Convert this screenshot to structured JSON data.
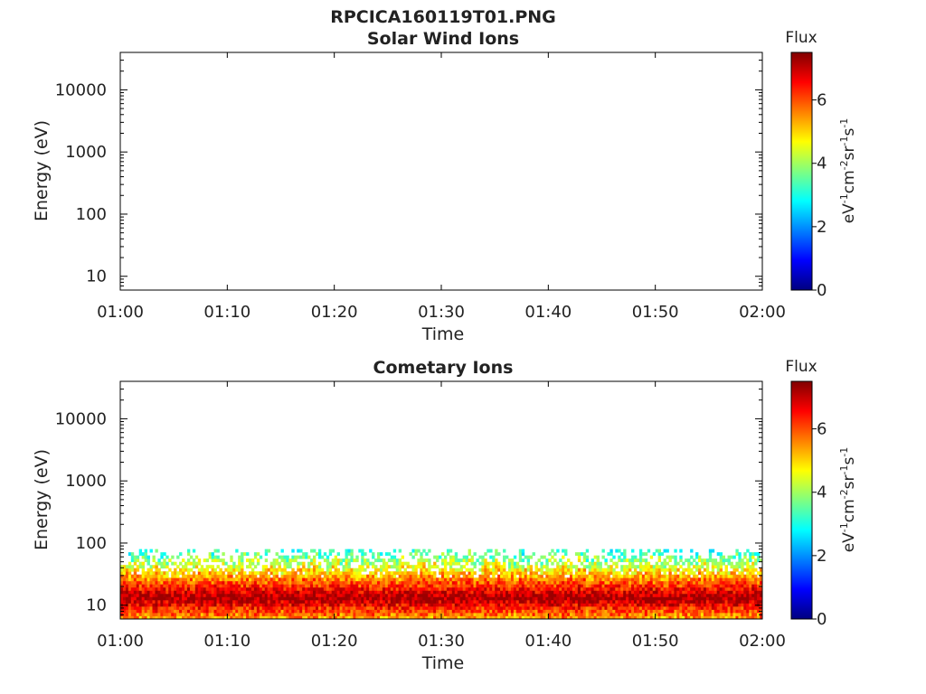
{
  "figure": {
    "title": "RPCICA160119T01.PNG"
  },
  "colorscale": {
    "colors": [
      "#000080",
      "#0000ff",
      "#0080ff",
      "#00ffff",
      "#80ff80",
      "#ffff00",
      "#ff8000",
      "#ff0000",
      "#800000"
    ]
  },
  "chart_data": [
    {
      "type": "heatmap",
      "title": "Solar Wind Ions",
      "xlabel": "Time",
      "ylabel": "Energy (eV)",
      "x_tick_labels": [
        "01:00",
        "01:10",
        "01:20",
        "01:30",
        "01:40",
        "01:50",
        "02:00"
      ],
      "xlim": [
        "01:00",
        "02:00"
      ],
      "y_tick_labels": [
        "10",
        "100",
        "1000",
        "10000"
      ],
      "y_tick_values": [
        10,
        100,
        1000,
        10000
      ],
      "ylim": [
        6,
        40000
      ],
      "y_scale": "log",
      "colorbar": {
        "title": "Flux",
        "label": "eV-1cm-2sr-1s-1",
        "tick_labels": [
          "0",
          "2",
          "4",
          "6"
        ],
        "range": [
          0,
          7.5
        ]
      },
      "data_present": false
    },
    {
      "type": "heatmap",
      "title": "Cometary Ions",
      "xlabel": "Time",
      "ylabel": "Energy (eV)",
      "x_tick_labels": [
        "01:00",
        "01:10",
        "01:20",
        "01:30",
        "01:40",
        "01:50",
        "02:00"
      ],
      "xlim": [
        "01:00",
        "02:00"
      ],
      "y_tick_labels": [
        "10",
        "100",
        "1000",
        "10000"
      ],
      "y_tick_values": [
        10,
        100,
        1000,
        10000
      ],
      "ylim": [
        6,
        40000
      ],
      "y_scale": "log",
      "colorbar": {
        "title": "Flux",
        "label": "eV-1cm-2sr-1s-1",
        "tick_labels": [
          "0",
          "2",
          "4",
          "6"
        ],
        "range": [
          0,
          7.5
        ]
      },
      "data_present": true,
      "energy_range_ev": [
        6,
        80
      ],
      "peak_flux_energy_ev": [
        9,
        20
      ],
      "flux_range_observed": [
        2.5,
        7.3
      ]
    }
  ]
}
